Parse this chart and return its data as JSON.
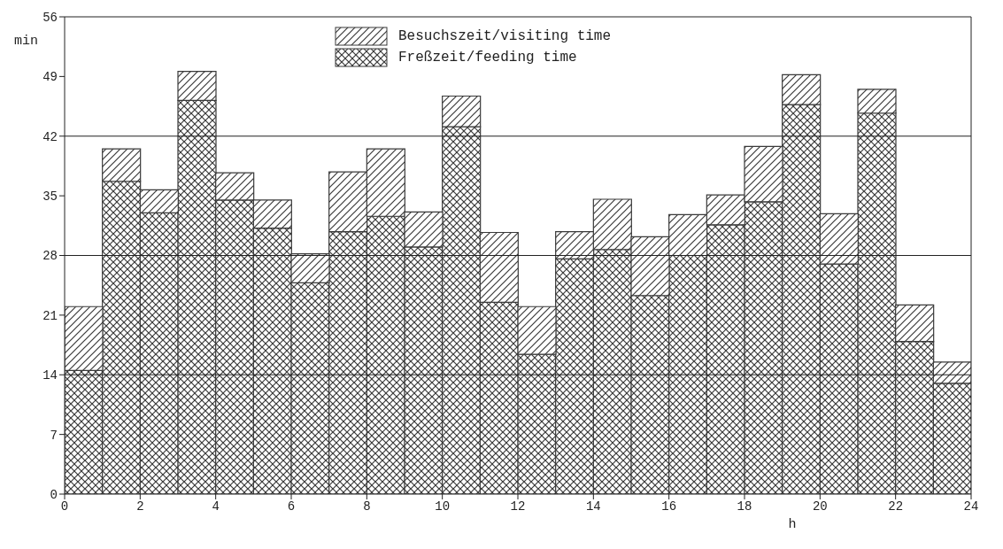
{
  "chart_data": {
    "type": "bar",
    "stacked": true,
    "xlabel": "h",
    "ylabel": "min",
    "x": [
      0.5,
      1.5,
      2.5,
      3.5,
      4.5,
      5.5,
      6.5,
      7.5,
      8.5,
      9.5,
      10.5,
      11.5,
      12.5,
      13.5,
      14.5,
      15.5,
      16.5,
      17.5,
      18.5,
      19.5,
      20.5,
      21.5,
      22.5,
      23.5
    ],
    "series": [
      {
        "name": "Freßzeit/feeding time",
        "color": "#3a3a3a",
        "values": [
          14.5,
          36.7,
          33.0,
          46.2,
          34.5,
          31.2,
          24.8,
          30.8,
          32.6,
          29.0,
          43.1,
          22.5,
          16.4,
          27.6,
          28.7,
          23.3,
          28.0,
          31.6,
          34.3,
          45.7,
          27.0,
          44.7,
          17.9,
          13.0
        ]
      },
      {
        "name": "Besuchszeit/visiting time",
        "color": "#3a3a3a",
        "values": [
          7.5,
          3.8,
          2.7,
          3.4,
          3.2,
          3.3,
          3.4,
          7.0,
          7.9,
          4.1,
          3.6,
          8.2,
          5.6,
          3.2,
          5.9,
          6.9,
          4.8,
          3.5,
          6.5,
          3.5,
          5.9,
          2.8,
          4.3,
          2.5
        ]
      }
    ],
    "xlim": [
      0,
      24
    ],
    "xticks": [
      0,
      2,
      4,
      6,
      8,
      10,
      12,
      14,
      16,
      18,
      20,
      22,
      24
    ],
    "ylim": [
      0,
      56
    ],
    "yticks": [
      0,
      7,
      14,
      21,
      28,
      35,
      42,
      49,
      56
    ],
    "ref_lines": [
      {
        "axis": "y",
        "value": 14
      },
      {
        "axis": "y",
        "value": 28
      },
      {
        "axis": "y",
        "value": 42
      }
    ],
    "legend": "top"
  }
}
